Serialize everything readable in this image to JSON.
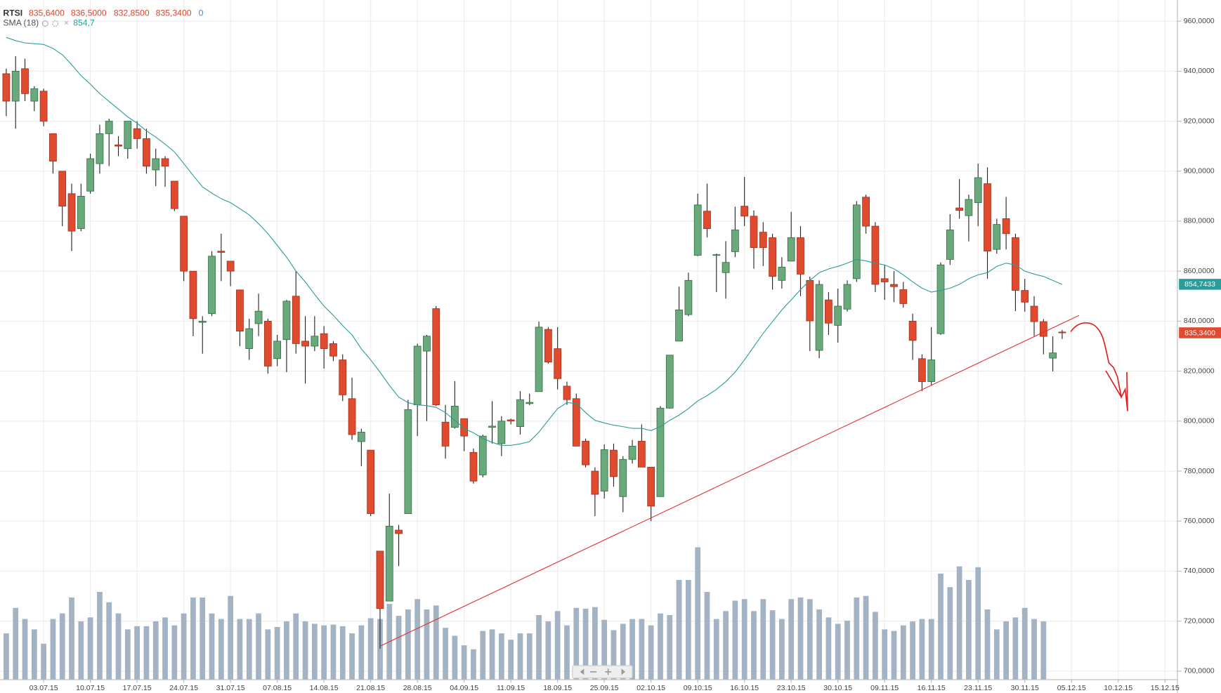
{
  "chart_data": {
    "type": "candlestick",
    "header": {
      "symbol": "RTSI",
      "values": [
        "835,6400",
        "836,5000",
        "832,8500",
        "835,3400"
      ],
      "volume": "0"
    },
    "xlim": [
      -0.67,
      125.33
    ],
    "ylim": [
      696.6,
      968.4
    ],
    "xticks": [
      {
        "value": 4,
        "label": "03.07.15"
      },
      {
        "value": 9,
        "label": "10.07.15"
      },
      {
        "value": 14,
        "label": "17.07.15"
      },
      {
        "value": 19,
        "label": "24.07.15"
      },
      {
        "value": 24,
        "label": "31.07.15"
      },
      {
        "value": 29,
        "label": "07.08.15"
      },
      {
        "value": 34,
        "label": "14.08.15"
      },
      {
        "value": 39,
        "label": "21.08.15"
      },
      {
        "value": 44,
        "label": "28.08.15"
      },
      {
        "value": 49,
        "label": "04.09.15"
      },
      {
        "value": 54,
        "label": "11.09.15"
      },
      {
        "value": 59,
        "label": "18.09.15"
      },
      {
        "value": 64,
        "label": "25.09.15"
      },
      {
        "value": 69,
        "label": "02.10.15"
      },
      {
        "value": 74,
        "label": "09.10.15"
      },
      {
        "value": 79,
        "label": "16.10.15"
      },
      {
        "value": 84,
        "label": "23.10.15"
      },
      {
        "value": 89,
        "label": "30.10.15"
      },
      {
        "value": 94,
        "label": "09.11.15"
      },
      {
        "value": 99,
        "label": "16.11.15"
      },
      {
        "value": 104,
        "label": "23.11.15"
      },
      {
        "value": 109,
        "label": "30.11.15"
      },
      {
        "value": 114,
        "label": "05.12.15"
      },
      {
        "value": 119,
        "label": "10.12.15"
      },
      {
        "value": 124,
        "label": "15.12.15"
      }
    ],
    "yticks": [
      {
        "value": 700,
        "label": "700,0000"
      },
      {
        "value": 720,
        "label": "720,0000"
      },
      {
        "value": 740,
        "label": "740,0000"
      },
      {
        "value": 760,
        "label": "760,0000"
      },
      {
        "value": 780,
        "label": "780,0000"
      },
      {
        "value": 800,
        "label": "800,0000"
      },
      {
        "value": 820,
        "label": "820,0000"
      },
      {
        "value": 840,
        "label": "840,0000"
      },
      {
        "value": 860,
        "label": "860,0000"
      },
      {
        "value": 880,
        "label": "880,0000"
      },
      {
        "value": 900,
        "label": "900,0000"
      },
      {
        "value": 920,
        "label": "920,0000"
      },
      {
        "value": 940,
        "label": "940,0000"
      },
      {
        "value": 960,
        "label": "960,0000"
      }
    ],
    "grid": true,
    "up_color": "#6aa97b",
    "down_color": "#e04a2f",
    "volume_color": "#a3b3c3",
    "open": [
      939,
      928,
      941,
      928,
      932,
      915,
      900,
      891,
      877,
      892,
      903,
      915,
      910.5,
      909,
      917,
      913,
      900.5,
      905,
      896,
      882,
      860,
      839.5,
      843,
      868,
      864,
      852.5,
      829,
      839,
      840,
      825,
      832.6,
      850,
      832,
      830,
      835,
      831,
      824.5,
      809,
      791.8,
      788.4,
      748,
      728,
      756.4,
      763,
      806.5,
      828,
      845,
      799.6,
      797.5,
      801,
      787.5,
      778.5,
      797.5,
      791,
      800.5,
      797.8,
      807,
      811.8,
      836.7,
      829,
      814,
      809,
      792,
      780,
      772,
      788.4,
      769.8,
      784.7,
      792,
      781.6,
      769.8,
      805.2,
      832,
      842.6,
      866.3,
      884,
      866.4,
      859.4,
      867.8,
      886,
      882,
      875.6,
      873.4,
      856.3,
      864,
      873.4,
      856.3,
      828.3,
      848.5,
      838.3,
      844.8,
      857,
      889.6,
      878,
      857,
      854.7,
      852.6,
      840,
      825,
      815.8,
      835,
      864.7,
      885.3,
      882.2,
      887.4,
      895,
      868.7,
      881,
      873.4,
      852.3,
      846,
      839.8,
      825.2,
      835.64
    ],
    "high": [
      941,
      946,
      945,
      934,
      933,
      915,
      900,
      895,
      895,
      907,
      918.6,
      921,
      914,
      920,
      920,
      917,
      909,
      906,
      896,
      882,
      860,
      842,
      868,
      875,
      864,
      852.5,
      841,
      851,
      841,
      834.5,
      848.5,
      860,
      842,
      842,
      838,
      832,
      826.7,
      817.4,
      797,
      788.4,
      748,
      771,
      758.5,
      808.5,
      831,
      834.5,
      846,
      806.5,
      816,
      801,
      789,
      794.6,
      808,
      802,
      801,
      812,
      811,
      839.8,
      837.6,
      837.6,
      815.8,
      811,
      793,
      781.5,
      790.7,
      791,
      786,
      792.5,
      798.7,
      781.6,
      806,
      826.4,
      853.8,
      859.4,
      891,
      895,
      867,
      872,
      885.8,
      897.7,
      884.3,
      879.6,
      875,
      865.6,
      883.7,
      878,
      857.8,
      856.3,
      851.6,
      853,
      856.3,
      888,
      890.6,
      879.6,
      862.5,
      860,
      855.7,
      843,
      826.7,
      837.6,
      863.5,
      882.8,
      896.8,
      890.6,
      903,
      901.5,
      881,
      889.7,
      875,
      856.9,
      850,
      840.8,
      833.9,
      836.5
    ],
    "low": [
      922,
      917,
      928,
      924,
      918,
      899,
      878,
      868,
      876,
      891,
      899,
      902,
      906,
      905,
      909,
      899,
      894,
      893.7,
      884,
      856,
      834,
      827,
      842,
      856,
      854,
      830,
      824.5,
      834,
      819,
      822,
      819.6,
      827,
      815,
      828,
      821,
      824,
      808,
      792.5,
      782,
      762,
      709,
      728,
      742,
      763,
      794,
      800,
      806,
      785,
      797,
      788,
      775,
      777.5,
      791,
      786,
      798.7,
      794.6,
      806.4,
      811.8,
      823,
      812.7,
      806.5,
      790,
      781.5,
      762,
      769,
      773.8,
      763.6,
      783,
      781.6,
      760,
      769.8,
      805,
      832,
      842,
      866,
      873.5,
      851.6,
      849,
      865.6,
      878,
      861,
      862,
      852.6,
      853,
      864,
      850,
      828,
      825.2,
      834.5,
      831.4,
      843.8,
      855.7,
      875,
      851.6,
      848.5,
      847.6,
      845.4,
      824.5,
      812,
      814.3,
      834.5,
      862.5,
      881,
      871.9,
      878,
      857,
      867,
      868.7,
      844,
      843.8,
      834,
      826.7,
      819.9,
      832.85
    ],
    "close": [
      928,
      940,
      931,
      933,
      920,
      904,
      886,
      876,
      890,
      905,
      915,
      920,
      910,
      920,
      913,
      902,
      905,
      902,
      885,
      860,
      841,
      840,
      866,
      867.5,
      860,
      836,
      837,
      844,
      822,
      832,
      848,
      831,
      830,
      834,
      829,
      826,
      810.5,
      794.6,
      795.6,
      763,
      725,
      758,
      755,
      804.6,
      830,
      834,
      806.5,
      790,
      806,
      794,
      776,
      794,
      798,
      800,
      800,
      808.6,
      807.5,
      837.6,
      823.6,
      817,
      808.6,
      790,
      782.5,
      770.7,
      788.6,
      777.8,
      784.7,
      790,
      781.6,
      766,
      805.2,
      826.4,
      844.5,
      856.3,
      886.5,
      877,
      866.6,
      863.5,
      876.5,
      882,
      869.4,
      869.4,
      857.9,
      861.6,
      873.4,
      858.8,
      840.1,
      854.7,
      839.2,
      846,
      854.7,
      886.5,
      878,
      854.7,
      855.7,
      853.8,
      847,
      832.3,
      815.8,
      824.5,
      862.5,
      876.5,
      884.3,
      888.7,
      897.4,
      868,
      878.7,
      875,
      852.3,
      847.6,
      839.8,
      833.9,
      827.3,
      835.34
    ],
    "volume": [
      58,
      90,
      76,
      63,
      45,
      76,
      83,
      103,
      73,
      78,
      110,
      97,
      83,
      63,
      67,
      67,
      73,
      78,
      68,
      83,
      103,
      103,
      83,
      76,
      105,
      76,
      76,
      83,
      63,
      66,
      73,
      83,
      73,
      70,
      68,
      69,
      67,
      58,
      68,
      77,
      76,
      95,
      80,
      88,
      101,
      88,
      93,
      65,
      55,
      43,
      38,
      61,
      63,
      58,
      50,
      58,
      58,
      81,
      73,
      86,
      68,
      90,
      89,
      91,
      75,
      62,
      70,
      76,
      76,
      68,
      83,
      81,
      125,
      125,
      166,
      110,
      76,
      86,
      99,
      101,
      86,
      101,
      87,
      76,
      101,
      103,
      101,
      88,
      78,
      70,
      74,
      103,
      105,
      85,
      63,
      61,
      68,
      73,
      76,
      76,
      133,
      116,
      142,
      125,
      141,
      88,
      63,
      73,
      78,
      90,
      76,
      73,
      null,
      null
    ],
    "sma": {
      "name": "SMA (18)",
      "value_label": "854,7",
      "color": "#2a9d9a",
      "values": [
        953.5,
        952.2,
        951.3,
        951,
        950.7,
        949.1,
        946.6,
        942.6,
        938.2,
        934.8,
        931,
        927.9,
        924.8,
        921.7,
        919.2,
        916.1,
        913.6,
        910.8,
        907.7,
        903,
        898.3,
        893.7,
        891.2,
        889,
        887.4,
        885,
        882.5,
        879,
        875,
        870.3,
        865.6,
        860,
        855.7,
        850.7,
        846,
        842.3,
        838.2,
        834.5,
        828.9,
        824.5,
        819.6,
        814.3,
        809.6,
        807.4,
        806.5,
        806.2,
        805.5,
        803.4,
        800.3,
        797.1,
        795.3,
        793.1,
        791.5,
        790.3,
        790.3,
        790.9,
        791.8,
        795.6,
        800.3,
        805,
        807.4,
        807.1,
        803.4,
        800.3,
        799.3,
        798.4,
        797.8,
        797.1,
        797.1,
        796.2,
        797.8,
        800.3,
        802.4,
        805,
        808.1,
        810.2,
        812.7,
        815.8,
        819.6,
        824.5,
        829.8,
        835.1,
        839.8,
        844.5,
        848.5,
        852.6,
        856.3,
        859.4,
        860.9,
        861.9,
        863.2,
        864.7,
        864.1,
        863.2,
        862.5,
        860.9,
        858.5,
        855.7,
        853.2,
        851.6,
        852.3,
        853.2,
        854.7,
        857,
        858.5,
        859.4,
        861.9,
        863.2,
        862.5,
        860,
        858.8,
        857.9,
        856.3,
        854.7
      ]
    },
    "trendline": {
      "x": [
        40,
        114.8
      ],
      "y": [
        710,
        842.3
      ],
      "color": "#e03030"
    },
    "price_tags": [
      {
        "value": 854.7433,
        "label": "854,7433",
        "color": "#2a9d9a"
      },
      {
        "value": 835.34,
        "label": "835,3400",
        "color": "#e04a2f"
      }
    ]
  }
}
